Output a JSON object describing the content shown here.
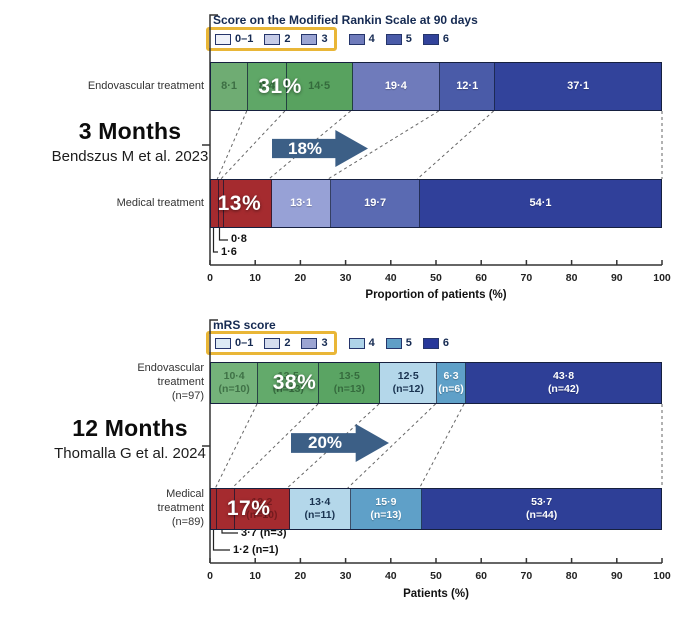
{
  "chart_data": [
    {
      "type": "stacked-bar-horizontal",
      "period_label": "3 Months",
      "citation": "Bendszus M et al. 2023",
      "legend_title": "Score on the Modified Rankin Scale at 90 days",
      "legend_items": [
        {
          "label": "0–1",
          "color": "#eef1f9",
          "highlighted": true
        },
        {
          "label": "2",
          "color": "#c5cbe7",
          "highlighted": true
        },
        {
          "label": "3",
          "color": "#9aa4d3",
          "highlighted": true
        },
        {
          "label": "4",
          "color": "#6f7bbb",
          "highlighted": false
        },
        {
          "label": "5",
          "color": "#4a5ba8",
          "highlighted": false
        },
        {
          "label": "6",
          "color": "#32439b",
          "highlighted": false
        }
      ],
      "highlight_box_color": "#e9b637",
      "arrow_label": "18%",
      "arrow_color": "#3c5f86",
      "xlabel": "Proportion of patients (%)",
      "xlim": [
        0,
        100
      ],
      "x_ticks": [
        0,
        10,
        20,
        30,
        40,
        50,
        60,
        70,
        80,
        90,
        100
      ],
      "rows": [
        {
          "label": "Endovascular treatment",
          "overlay": {
            "text": "31%",
            "span": 31
          },
          "segments": [
            {
              "v": 8.1,
              "label": "8·1",
              "color": "#6fac73",
              "text": "muted"
            },
            {
              "v": 8.4,
              "label": "8·4",
              "color": "#5fa767",
              "text": "muted"
            },
            {
              "v": 14.5,
              "label": "14·5",
              "color": "#58a25f",
              "text": "muted"
            },
            {
              "v": 19.4,
              "label": "19·4",
              "color": "#6f7bbb",
              "text": "white"
            },
            {
              "v": 12.1,
              "label": "12·1",
              "color": "#4a5ba8",
              "text": "white"
            },
            {
              "v": 37.1,
              "label": "37·1",
              "color": "#32439b",
              "text": "white"
            }
          ]
        },
        {
          "label": "Medical treatment",
          "overlay": {
            "text": "13%",
            "span": 13
          },
          "segments": [
            {
              "v": 1.6,
              "label": "",
              "color": "#a52b2f"
            },
            {
              "v": 0.8,
              "label": "",
              "color": "#a52b2f"
            },
            {
              "v": 10.6,
              "label": "",
              "color": "#a52b2f"
            },
            {
              "v": 13.1,
              "label": "13·1",
              "color": "#97a1d6",
              "text": "white"
            },
            {
              "v": 19.7,
              "label": "19·7",
              "color": "#5a6ab2",
              "text": "white"
            },
            {
              "v": 54.1,
              "label": "54·1",
              "color": "#30409a",
              "text": "white"
            }
          ],
          "callouts": [
            {
              "text": "1·6",
              "value": 1.6
            },
            {
              "text": "0·8",
              "value": 0.8
            }
          ]
        }
      ]
    },
    {
      "type": "stacked-bar-horizontal",
      "period_label": "12 Months",
      "citation": "Thomalla G et al. 2024",
      "legend_title": "mRS score",
      "legend_items": [
        {
          "label": "0–1",
          "color": "#ddebf5",
          "highlighted": true
        },
        {
          "label": "2",
          "color": "#d5ddee",
          "highlighted": true
        },
        {
          "label": "3",
          "color": "#9ba4d2",
          "highlighted": true
        },
        {
          "label": "4",
          "color": "#aed3e8",
          "highlighted": false
        },
        {
          "label": "5",
          "color": "#5f9ec6",
          "highlighted": false
        },
        {
          "label": "6",
          "color": "#27389a",
          "highlighted": false
        }
      ],
      "highlight_box_color": "#e9b637",
      "arrow_label": "20%",
      "arrow_color": "#3c5f86",
      "xlabel": "Patients (%)",
      "xlim": [
        0,
        100
      ],
      "x_ticks": [
        0,
        10,
        20,
        30,
        40,
        50,
        60,
        70,
        80,
        90,
        100
      ],
      "rows": [
        {
          "label": "Endovascular\ntreatment\n(n=97)",
          "overlay": {
            "text": "38%",
            "span": 37.4
          },
          "segments": [
            {
              "v": 10.4,
              "n": 10,
              "label": "10·4\n(n=10)",
              "color": "#74b27a",
              "text": "muted"
            },
            {
              "v": 13.5,
              "n": 13,
              "label": "13·5\n(n=13)",
              "color": "#63aa6b",
              "text": "muted"
            },
            {
              "v": 13.5,
              "n": 13,
              "label": "13·5\n(n=13)",
              "color": "#5aa463",
              "text": "muted"
            },
            {
              "v": 12.5,
              "n": 12,
              "label": "12·5\n(n=12)",
              "color": "#b4d7ea",
              "text": "dark"
            },
            {
              "v": 6.3,
              "n": 6,
              "label": "6·3\n(n=6)",
              "color": "#5fa0c8",
              "text": "white"
            },
            {
              "v": 43.8,
              "n": 42,
              "label": "43·8\n(n=42)",
              "color": "#2e3f97",
              "text": "white"
            }
          ]
        },
        {
          "label": "Medical\ntreatment\n(n=89)",
          "overlay": {
            "text": "17%",
            "span": 17.1
          },
          "segments": [
            {
              "v": 1.2,
              "n": 1,
              "label": "",
              "color": "#a52b2f"
            },
            {
              "v": 3.7,
              "n": 3,
              "label": "",
              "color": "#a52b2f"
            },
            {
              "v": 12.2,
              "n": 10,
              "label": "12·2\n(n=10)",
              "color": "#a52b2f",
              "text": "mutedred"
            },
            {
              "v": 13.4,
              "n": 11,
              "label": "13·4\n(n=11)",
              "color": "#b4d7ea",
              "text": "dark"
            },
            {
              "v": 15.9,
              "n": 13,
              "label": "15·9\n(n=13)",
              "color": "#5fa0c8",
              "text": "white"
            },
            {
              "v": 53.7,
              "n": 44,
              "label": "53·7\n(n=44)",
              "color": "#2e3f97",
              "text": "white"
            }
          ],
          "callouts": [
            {
              "text": "1·2 (n=1)",
              "value": 1.2,
              "n": 1
            },
            {
              "text": "3·7 (n=3)",
              "value": 3.7,
              "n": 3
            }
          ]
        }
      ]
    }
  ]
}
